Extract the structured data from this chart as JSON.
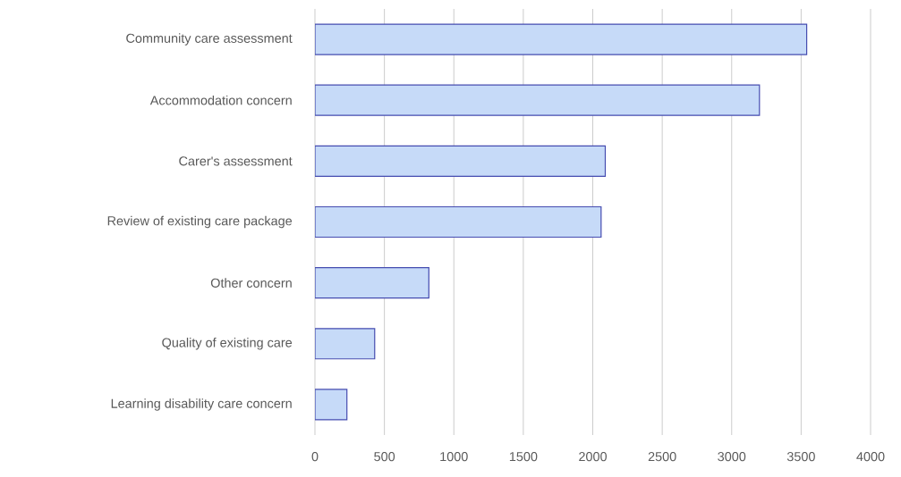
{
  "chart_data": {
    "type": "bar",
    "orientation": "horizontal",
    "categories": [
      "Community care assessment",
      "Accommodation concern",
      "Carer's assessment",
      "Review of existing care package",
      "Other concern",
      "Quality of existing care",
      "Learning disability care concern"
    ],
    "values": [
      3540,
      3200,
      2090,
      2060,
      820,
      430,
      230
    ],
    "color": "#c6daf8",
    "xlim": [
      0,
      4000
    ],
    "xticks": [
      0,
      500,
      1000,
      1500,
      2000,
      2500,
      3000,
      3500,
      4000
    ],
    "grid": "x"
  }
}
